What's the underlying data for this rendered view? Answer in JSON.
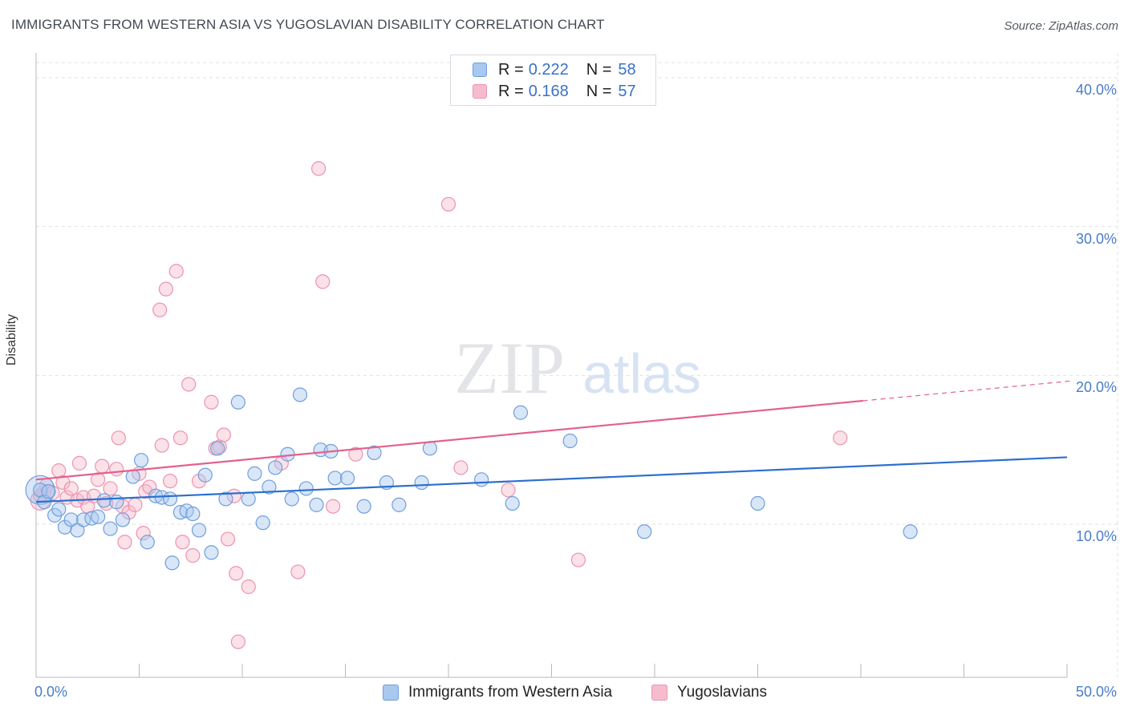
{
  "title": "IMMIGRANTS FROM WESTERN ASIA VS YUGOSLAVIAN DISABILITY CORRELATION CHART",
  "source": "Source: ZipAtlas.com",
  "watermark": {
    "zip": "ZIP",
    "atlas": "atlas"
  },
  "legend": {
    "rows": [
      {
        "r_label": "R =",
        "r_value": "0.222",
        "n_label": "N =",
        "n_value": "58"
      },
      {
        "r_label": "R =",
        "r_value": "0.168",
        "n_label": "N =",
        "n_value": "57"
      }
    ]
  },
  "bottom_legend": {
    "series1": "Immigrants from Western Asia",
    "series2": "Yugoslavians"
  },
  "colors": {
    "blue_fill": "#a9c8ef",
    "blue_stroke": "#6f9fdc",
    "blue_line": "#2b6fcf",
    "pink_fill": "#f6bccd",
    "pink_stroke": "#ec93b0",
    "pink_line": "#e4608c",
    "tick_text": "#4a7ccb",
    "grid": "#dfe2e6"
  },
  "chart_data": {
    "type": "scatter",
    "title": "IMMIGRANTS FROM WESTERN ASIA VS YUGOSLAVIAN DISABILITY CORRELATION CHART",
    "xlabel": "",
    "ylabel": "Disability",
    "xlim": [
      0,
      50
    ],
    "ylim": [
      0,
      42
    ],
    "x_tick_labels": [
      "0.0%",
      "50.0%"
    ],
    "y_ticks": [
      10,
      20,
      30,
      40
    ],
    "y_tick_labels": [
      "10.0%",
      "20.0%",
      "30.0%",
      "40.0%"
    ],
    "grid": true,
    "series": [
      {
        "name": "Immigrants from Western Asia",
        "R": 0.222,
        "N": 58,
        "trend": {
          "x0": 0,
          "y0": 11.5,
          "x1": 50,
          "y1": 14.5
        },
        "points": [
          [
            0.2,
            12.3
          ],
          [
            0.4,
            11.5
          ],
          [
            0.6,
            12.2
          ],
          [
            0.9,
            10.6
          ],
          [
            1.1,
            11.0
          ],
          [
            1.4,
            9.8
          ],
          [
            1.7,
            10.3
          ],
          [
            2.0,
            9.6
          ],
          [
            2.3,
            10.3
          ],
          [
            2.7,
            10.4
          ],
          [
            3.0,
            10.5
          ],
          [
            3.3,
            11.6
          ],
          [
            3.6,
            9.7
          ],
          [
            3.9,
            11.5
          ],
          [
            4.2,
            10.3
          ],
          [
            4.7,
            13.2
          ],
          [
            5.1,
            14.3
          ],
          [
            5.4,
            8.8
          ],
          [
            5.8,
            11.9
          ],
          [
            6.1,
            11.8
          ],
          [
            6.5,
            11.7
          ],
          [
            6.6,
            7.4
          ],
          [
            7.0,
            10.8
          ],
          [
            7.3,
            10.9
          ],
          [
            7.6,
            10.7
          ],
          [
            7.9,
            9.6
          ],
          [
            8.2,
            13.3
          ],
          [
            8.5,
            8.1
          ],
          [
            8.8,
            15.1
          ],
          [
            9.2,
            11.7
          ],
          [
            9.8,
            18.2
          ],
          [
            10.3,
            11.7
          ],
          [
            10.6,
            13.4
          ],
          [
            11.0,
            10.1
          ],
          [
            11.3,
            12.5
          ],
          [
            11.6,
            13.8
          ],
          [
            12.2,
            14.7
          ],
          [
            12.4,
            11.7
          ],
          [
            12.8,
            18.7
          ],
          [
            13.1,
            12.4
          ],
          [
            13.6,
            11.3
          ],
          [
            13.8,
            15.0
          ],
          [
            14.3,
            14.9
          ],
          [
            14.5,
            13.1
          ],
          [
            15.1,
            13.1
          ],
          [
            15.9,
            11.2
          ],
          [
            16.4,
            14.8
          ],
          [
            17.0,
            12.8
          ],
          [
            17.6,
            11.3
          ],
          [
            18.7,
            12.8
          ],
          [
            19.1,
            15.1
          ],
          [
            21.6,
            13.0
          ],
          [
            23.1,
            11.4
          ],
          [
            23.5,
            17.5
          ],
          [
            25.9,
            15.6
          ],
          [
            29.5,
            9.5
          ],
          [
            35.0,
            11.4
          ],
          [
            42.4,
            9.5
          ]
        ]
      },
      {
        "name": "Yugoslavians",
        "R": 0.168,
        "N": 57,
        "trend": {
          "x0": 0,
          "y0": 13.0,
          "x1": 50,
          "y1": 19.6
        },
        "points": [
          [
            0.2,
            11.9
          ],
          [
            0.4,
            12.2
          ],
          [
            0.5,
            12.6
          ],
          [
            0.8,
            12.1
          ],
          [
            1.1,
            13.6
          ],
          [
            1.3,
            12.8
          ],
          [
            1.5,
            11.8
          ],
          [
            1.7,
            12.4
          ],
          [
            2.0,
            11.6
          ],
          [
            2.1,
            14.1
          ],
          [
            2.3,
            11.8
          ],
          [
            2.5,
            11.2
          ],
          [
            2.8,
            11.9
          ],
          [
            3.0,
            13.0
          ],
          [
            3.2,
            13.9
          ],
          [
            3.4,
            11.4
          ],
          [
            3.6,
            12.4
          ],
          [
            3.9,
            13.7
          ],
          [
            4.0,
            15.8
          ],
          [
            4.2,
            11.2
          ],
          [
            4.3,
            8.8
          ],
          [
            4.5,
            10.8
          ],
          [
            4.8,
            11.3
          ],
          [
            5.0,
            13.4
          ],
          [
            5.2,
            9.4
          ],
          [
            5.3,
            12.2
          ],
          [
            5.5,
            12.5
          ],
          [
            6.0,
            24.4
          ],
          [
            6.1,
            15.3
          ],
          [
            6.3,
            25.8
          ],
          [
            6.5,
            12.9
          ],
          [
            6.8,
            27.0
          ],
          [
            7.0,
            15.8
          ],
          [
            7.1,
            8.8
          ],
          [
            7.4,
            19.4
          ],
          [
            7.6,
            7.9
          ],
          [
            7.9,
            12.9
          ],
          [
            8.5,
            18.2
          ],
          [
            8.7,
            15.1
          ],
          [
            8.9,
            15.2
          ],
          [
            9.1,
            16.0
          ],
          [
            9.3,
            9.0
          ],
          [
            9.6,
            11.9
          ],
          [
            9.7,
            6.7
          ],
          [
            10.3,
            5.8
          ],
          [
            9.8,
            2.1
          ],
          [
            11.9,
            14.1
          ],
          [
            12.7,
            6.8
          ],
          [
            13.7,
            33.9
          ],
          [
            13.9,
            26.3
          ],
          [
            14.4,
            11.2
          ],
          [
            15.5,
            14.7
          ],
          [
            20.0,
            31.5
          ],
          [
            20.6,
            13.8
          ],
          [
            22.9,
            12.3
          ],
          [
            26.3,
            7.6
          ],
          [
            39.0,
            15.8
          ]
        ]
      }
    ]
  }
}
